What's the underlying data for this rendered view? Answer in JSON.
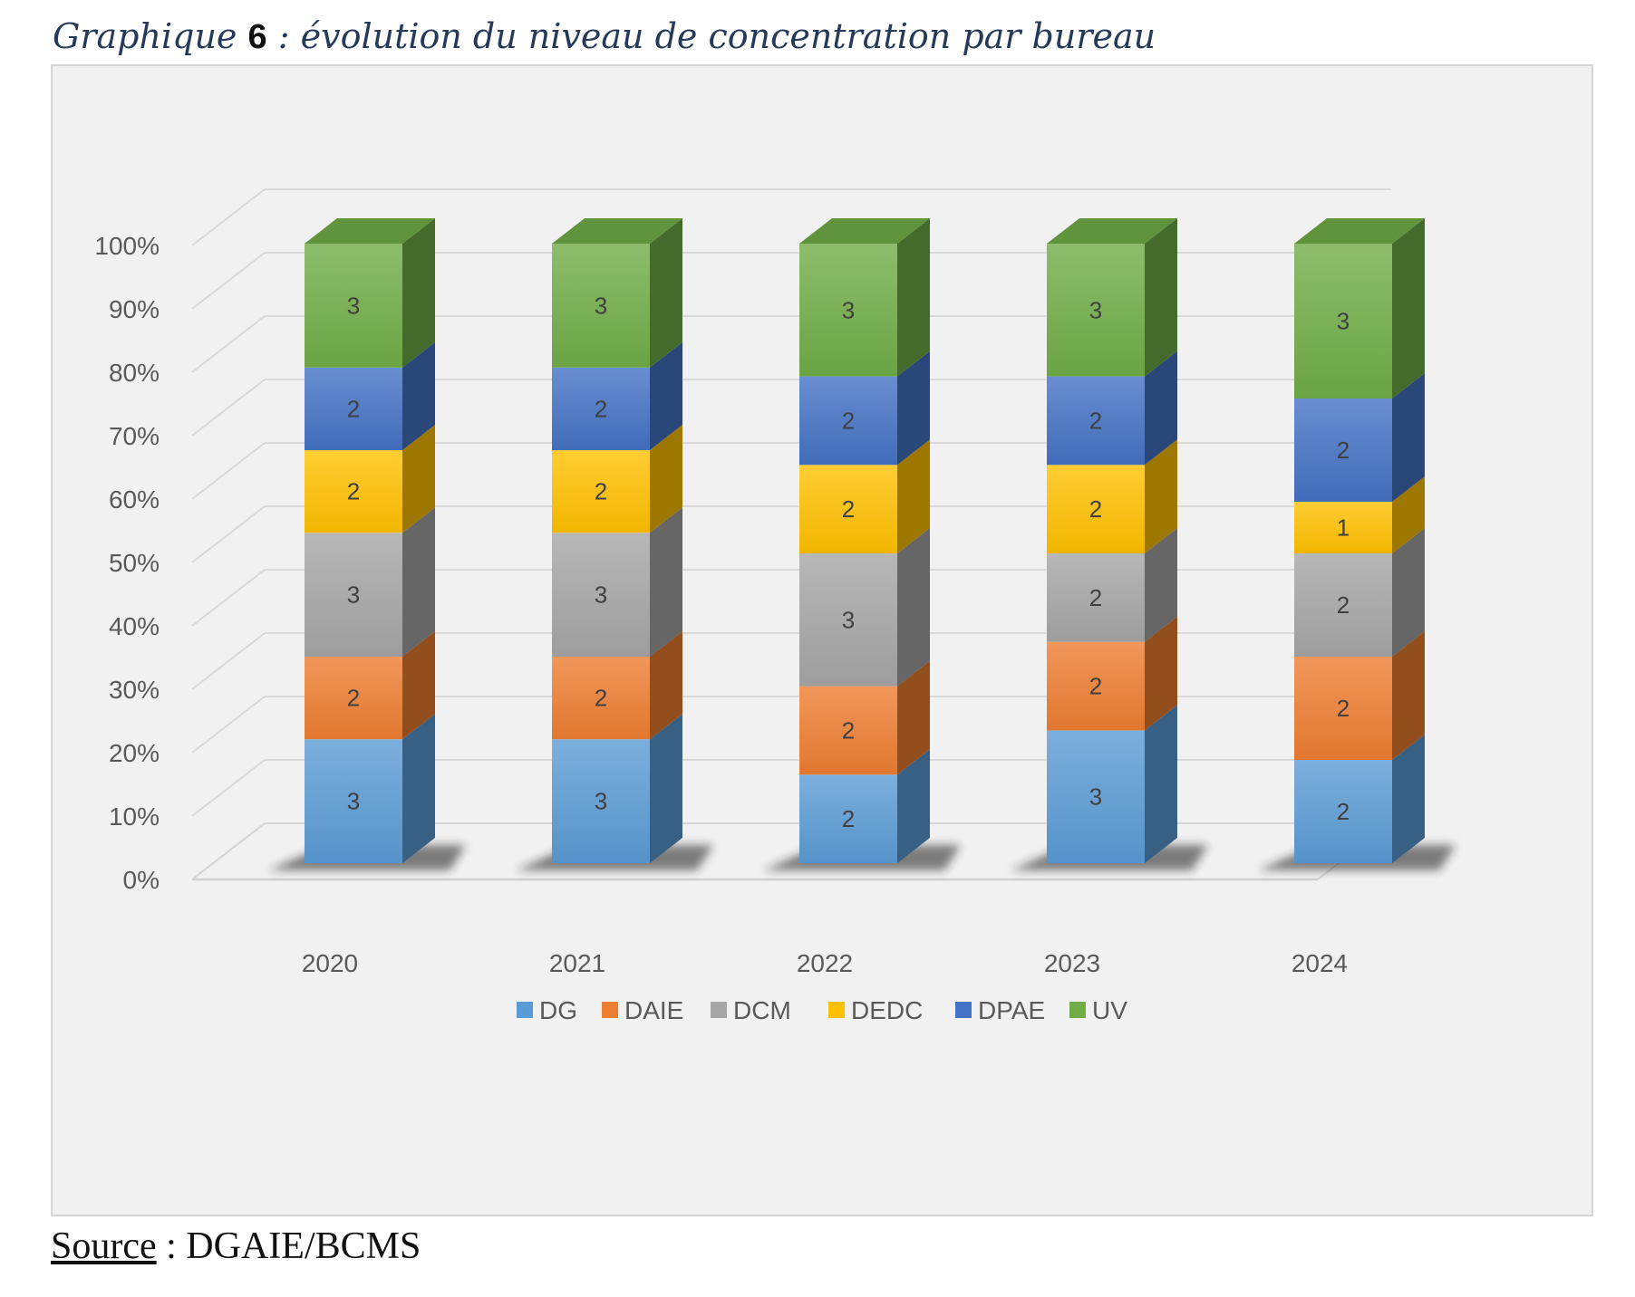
{
  "title": {
    "prefix": "Graphique",
    "number": "6",
    "rest": " :  évolution du niveau de concentration par bureau"
  },
  "source": {
    "label": "Source",
    "text": " : DGAIE/BCMS"
  },
  "chart_data": {
    "type": "bar",
    "stacked": "percent",
    "three_d": true,
    "categories": [
      "2020",
      "2021",
      "2022",
      "2023",
      "2024"
    ],
    "series": [
      {
        "name": "DG",
        "values": [
          3,
          3,
          2,
          3,
          2
        ],
        "color": "#5b9bd5"
      },
      {
        "name": "DAIE",
        "values": [
          2,
          2,
          2,
          2,
          2
        ],
        "color": "#ed7d31"
      },
      {
        "name": "DCM",
        "values": [
          3,
          3,
          3,
          2,
          2
        ],
        "color": "#a5a5a5"
      },
      {
        "name": "DEDC",
        "values": [
          2,
          2,
          2,
          2,
          1
        ],
        "color": "#ffc000"
      },
      {
        "name": "DPAE",
        "values": [
          2,
          2,
          2,
          2,
          2
        ],
        "color": "#4472c4"
      },
      {
        "name": "UV",
        "values": [
          3,
          3,
          3,
          3,
          3
        ],
        "color": "#70ad47"
      }
    ],
    "y_ticks": [
      "0%",
      "10%",
      "20%",
      "30%",
      "40%",
      "50%",
      "60%",
      "70%",
      "80%",
      "90%",
      "100%"
    ],
    "ylim": [
      0,
      100
    ],
    "grid": true,
    "legend": "bottom",
    "xlabel": "",
    "ylabel": ""
  }
}
